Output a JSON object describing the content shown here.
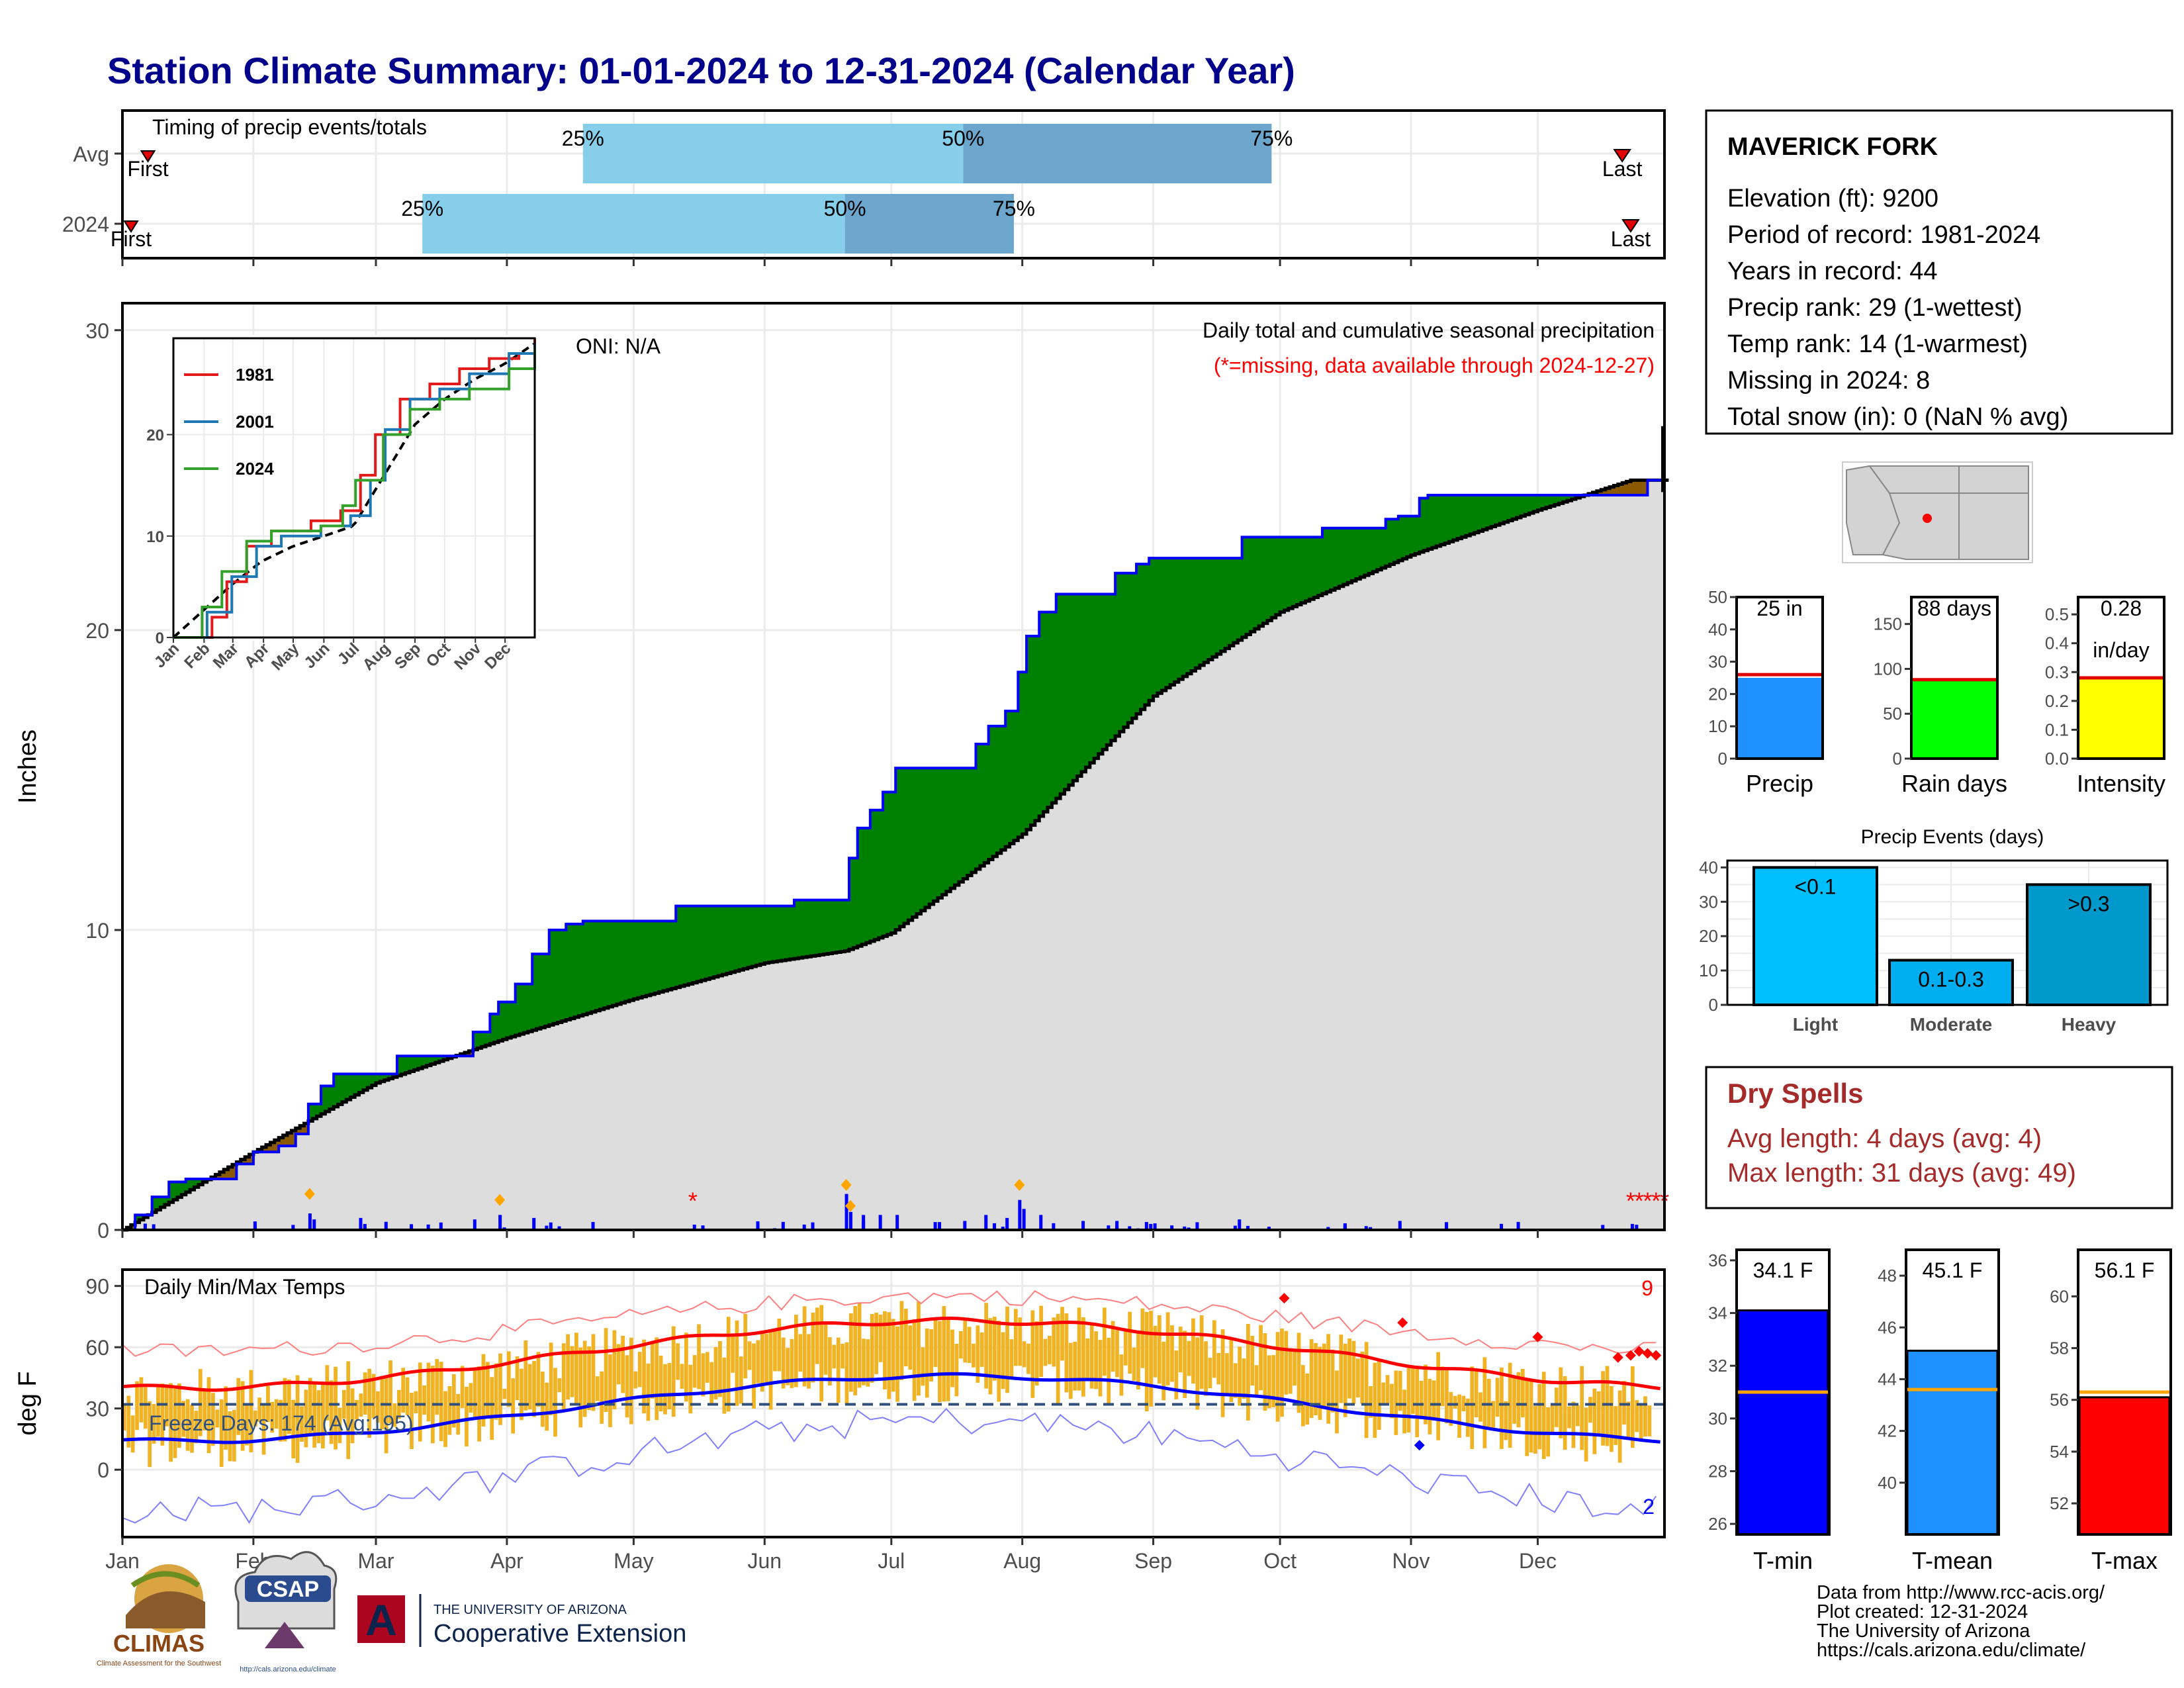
{
  "title": "Station Climate Summary: 01-01-2024 to 12-31-2024 (Calendar Year)",
  "months": [
    "Jan",
    "Feb",
    "Mar",
    "Apr",
    "May",
    "Jun",
    "Jul",
    "Aug",
    "Sep",
    "Oct",
    "Nov",
    "Dec"
  ],
  "timing": {
    "label": "Timing of precip events/totals",
    "rows": [
      {
        "name": "Avg",
        "first": "First",
        "last": "Last",
        "p25": "25%",
        "p50": "50%",
        "p75": "75%",
        "first_doy": 5,
        "p25_doy": 110,
        "p50_doy": 200,
        "p75_doy": 273,
        "last_doy": 356
      },
      {
        "name": "2024",
        "first": "First",
        "last": "Last",
        "p25": "25%",
        "p50": "50%",
        "p75": "75%",
        "first_doy": 1,
        "p25_doy": 72,
        "p50_doy": 172,
        "p75_doy": 212,
        "last_doy": 358
      }
    ],
    "colors": {
      "light": "#87ceeb",
      "dark": "#6ca6cd"
    }
  },
  "precip": {
    "ylabel": "Inches",
    "note1": "Daily total and cumulative seasonal precipitation",
    "note2": "(*=missing, data available through 2024-12-27)",
    "oni": "ONI: N/A",
    "yticks": [
      "0",
      "10",
      "20",
      "30"
    ],
    "colors": {
      "above": "#008000",
      "below": "#8b5a00",
      "avg": "#dddddd",
      "line": "#0000ff"
    }
  },
  "inset": {
    "legend": [
      "1981",
      "2001",
      "2024"
    ],
    "colors": [
      "#e31a1c",
      "#1f78b4",
      "#33a02c"
    ],
    "yticks": [
      "0",
      "10",
      "20"
    ],
    "months": [
      "Jan",
      "Feb",
      "Mar",
      "Apr",
      "May",
      "Jun",
      "Jul",
      "Aug",
      "Sep",
      "Oct",
      "Nov",
      "Dec"
    ]
  },
  "temps": {
    "ylabel": "deg F",
    "label": "Daily Min/Max Temps",
    "freeze": "Freeze Days: 174 (Avg:195)",
    "count_hi": "9",
    "count_lo": "2",
    "yticks": [
      "0",
      "30",
      "60",
      "90"
    ],
    "colors": {
      "bar": "#f0b323",
      "max": "#ff0000",
      "min": "#0000ff"
    }
  },
  "station": {
    "name": "MAVERICK FORK",
    "lines": [
      "Elevation (ft): 9200",
      "Period of record: 1981-2024",
      "Years in record: 44",
      "Precip rank: 29 (1-wettest)",
      "Temp rank: 14 (1-warmest)",
      "Missing in 2024: 8",
      "Total snow (in): 0 (NaN % avg)"
    ]
  },
  "mini_bars": [
    {
      "label": "Precip",
      "value": 25,
      "avg": 26,
      "top": "25 in",
      "sub": "",
      "color": "#1e90ff",
      "ymax": 50,
      "ticks": [
        "0",
        "10",
        "20",
        "30",
        "40",
        "50"
      ]
    },
    {
      "label": "Rain days",
      "value": 88,
      "avg": 88,
      "top": "88 days",
      "sub": "",
      "color": "#00ff00",
      "ymax": 180,
      "ticks": [
        "0",
        "50",
        "100",
        "150"
      ]
    },
    {
      "label": "Intensity",
      "value": 0.28,
      "avg": 0.28,
      "top": "0.28",
      "sub": "in/day",
      "color": "#ffff00",
      "ymax": 0.56,
      "ticks": [
        "0.0",
        "0.1",
        "0.2",
        "0.3",
        "0.4",
        "0.5"
      ]
    }
  ],
  "events": {
    "title": "Precip Events (days)",
    "ticks": [
      "0",
      "10",
      "20",
      "30",
      "40"
    ],
    "bars": [
      {
        "label": "Light",
        "value": 40,
        "text": "<0.1",
        "color": "#00bfff"
      },
      {
        "label": "Moderate",
        "value": 13,
        "text": "0.1-0.3",
        "color": "#00aeef"
      },
      {
        "label": "Heavy",
        "value": 35,
        "text": ">0.3",
        "color": "#0099cc"
      }
    ]
  },
  "dry": {
    "title": "Dry Spells",
    "avg": "Avg length: 4 days (avg: 4)",
    "max": "Max length: 31 days (avg: 49)",
    "color": "#a52a2a"
  },
  "tbars": [
    {
      "label": "T-min",
      "value": 34.1,
      "avg": 31.0,
      "text": "34.1 F",
      "color": "#0000ff",
      "ymin": 25.6,
      "ymax": 36.4,
      "ticks": [
        26,
        28,
        30,
        32,
        34,
        36
      ]
    },
    {
      "label": "T-mean",
      "value": 45.1,
      "avg": 43.6,
      "text": "45.1 F",
      "color": "#1e90ff",
      "ymin": 38,
      "ymax": 49,
      "ticks": [
        40,
        42,
        44,
        46,
        48
      ]
    },
    {
      "label": "T-max",
      "value": 56.1,
      "avg": 56.3,
      "text": "56.1 F",
      "color": "#ff0000",
      "ymin": 50.8,
      "ymax": 61.8,
      "ticks": [
        52,
        54,
        56,
        58,
        60
      ]
    }
  ],
  "footer": {
    "lines": [
      "Data from http://www.rcc-acis.org/",
      "Plot created: 12-31-2024",
      "The University of Arizona",
      "https://cals.arizona.edu/climate/"
    ],
    "climas": "CLIMAS",
    "climas_sub": "Climate Assessment for the Southwest",
    "csap": "CSAP",
    "csap_sub": "http://cals.arizona.edu/climate",
    "ua_top": "THE UNIVERSITY OF ARIZONA",
    "ua_bottom": "Cooperative Extension"
  }
}
